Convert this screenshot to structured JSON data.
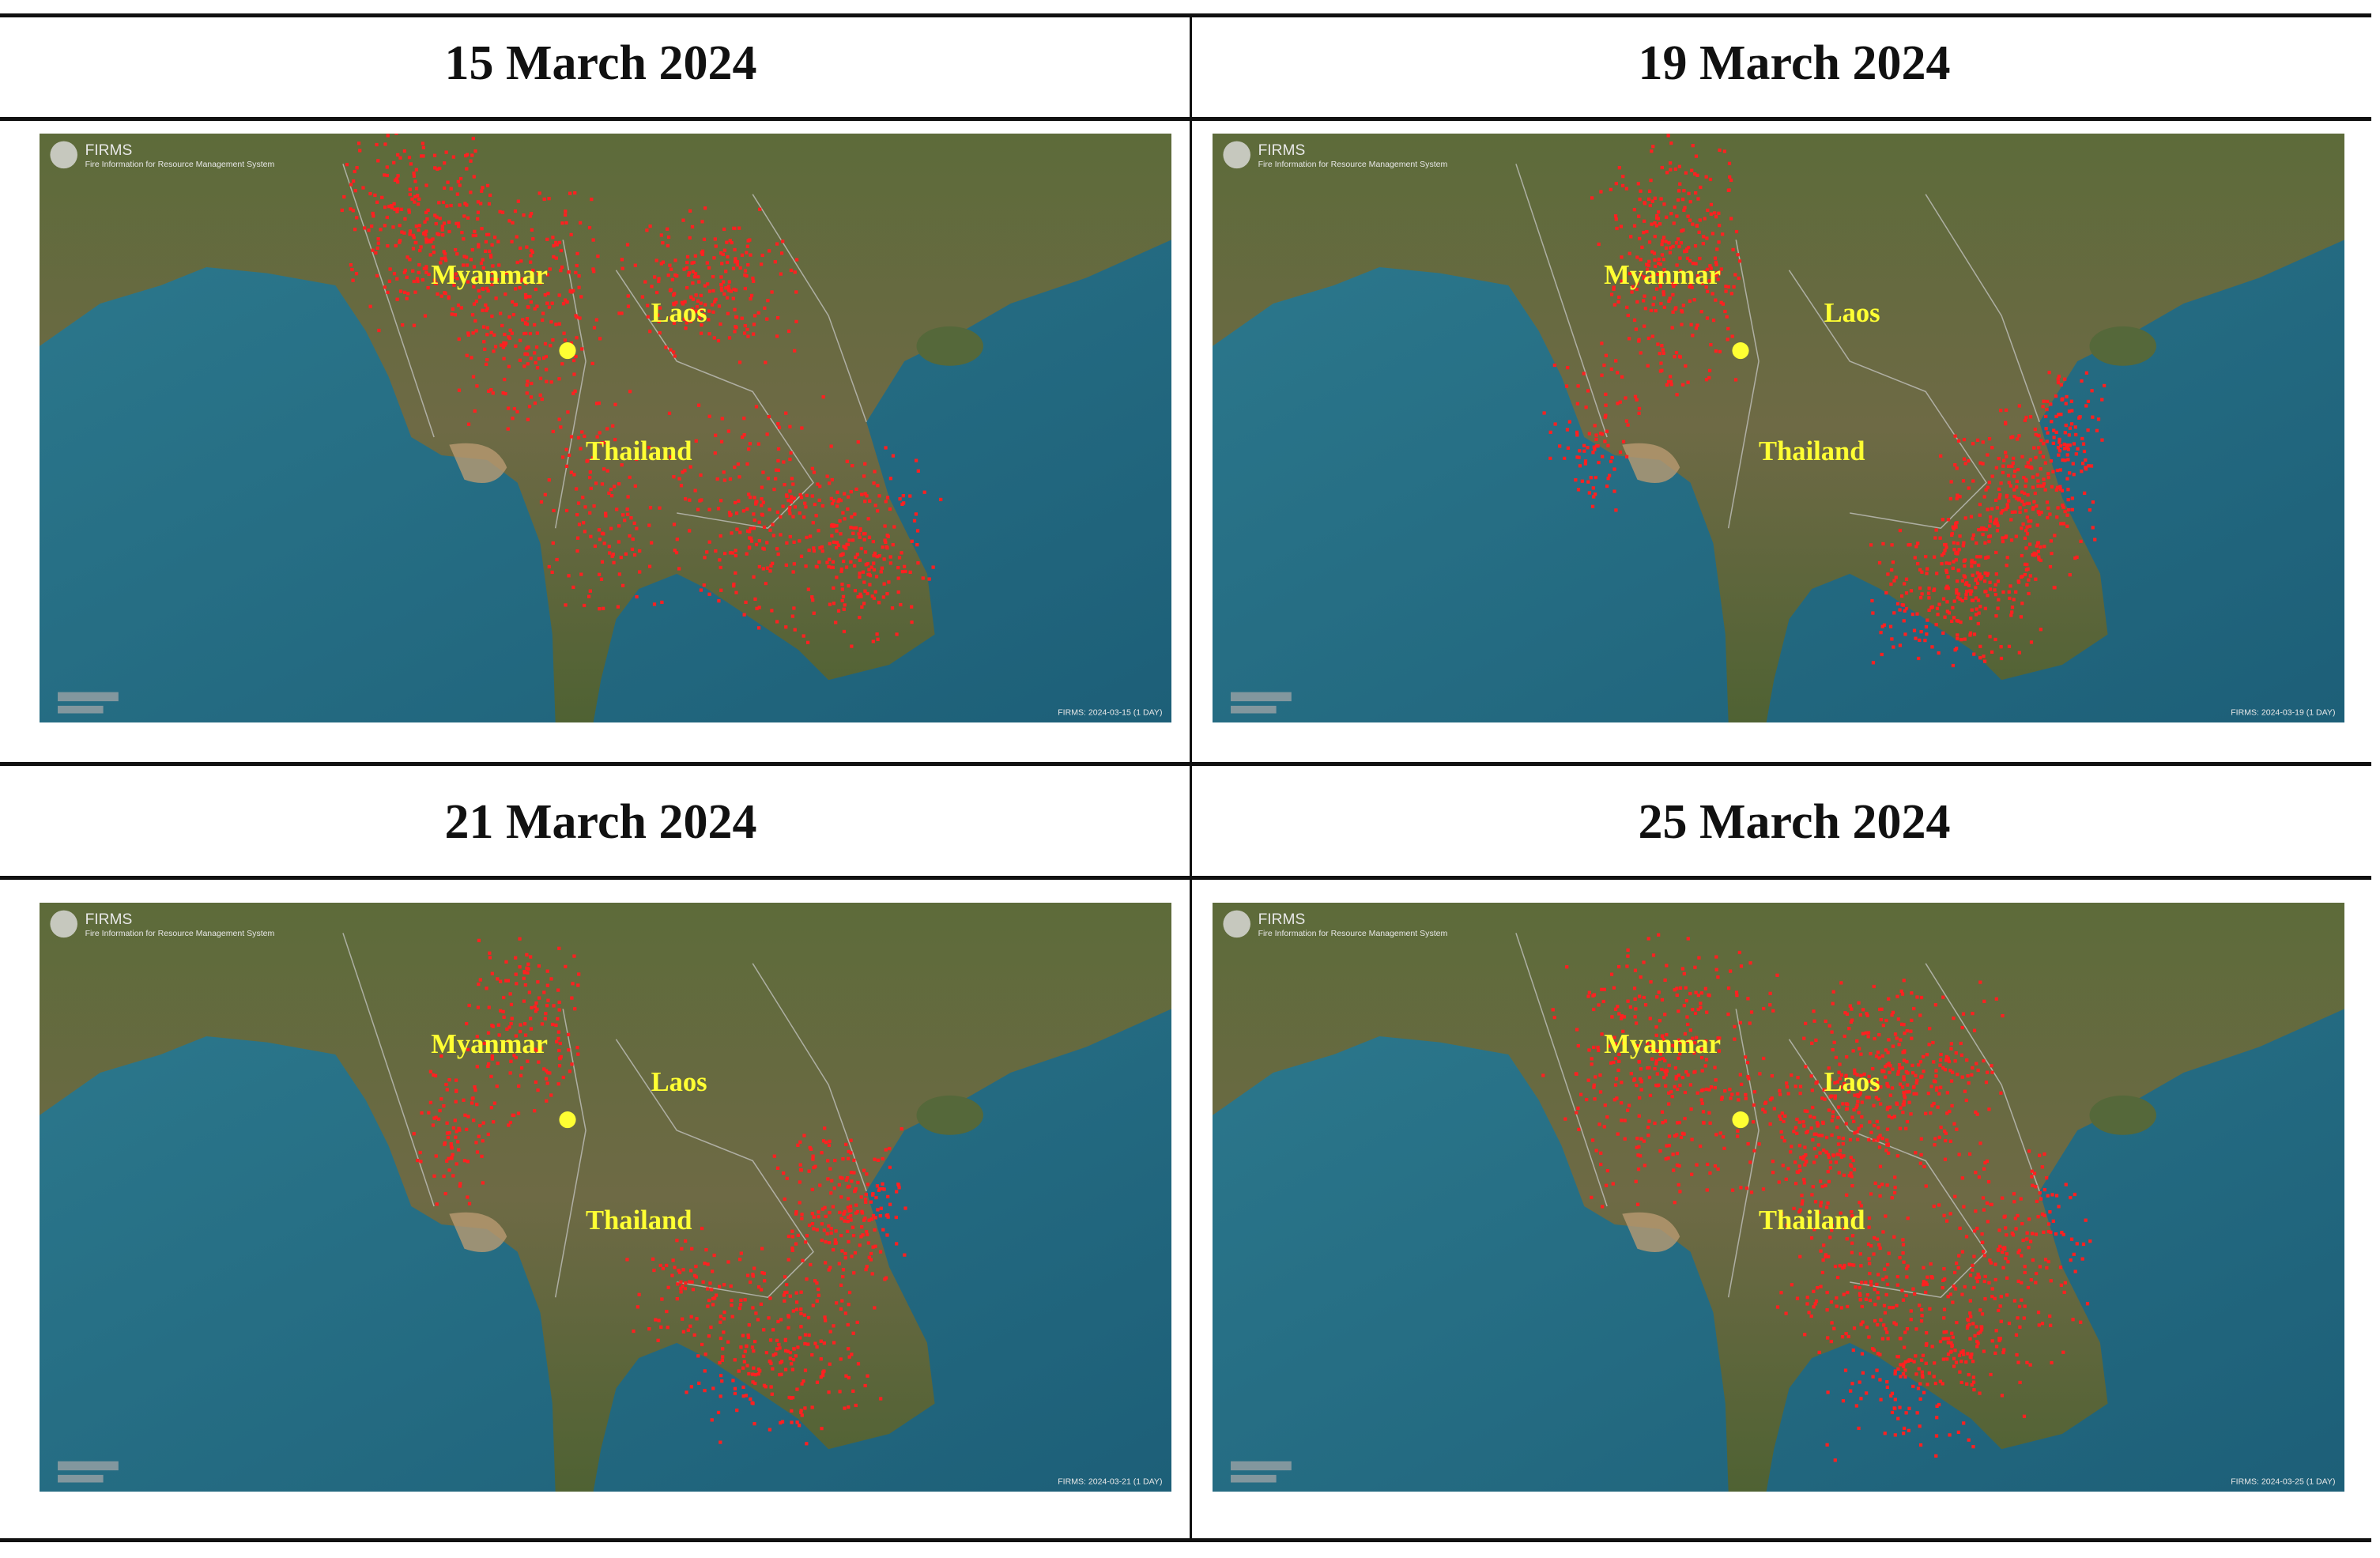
{
  "panels": [
    {
      "date": "15 March 2024",
      "map": {
        "logo_title": "FIRMS",
        "logo_subtitle": "Fire Information for Resource Management System",
        "labels": {
          "myanmar": "Myanmar",
          "laos": "Laos",
          "thailand": "Thailand"
        },
        "footer": "FIRMS: 2024-03-15 (1 DAY)"
      }
    },
    {
      "date": "19 March 2024",
      "map": {
        "logo_title": "FIRMS",
        "logo_subtitle": "Fire Information for Resource Management System",
        "labels": {
          "myanmar": "Myanmar",
          "laos": "Laos",
          "thailand": "Thailand"
        },
        "footer": "FIRMS: 2024-03-19 (1 DAY)"
      }
    },
    {
      "date": "21 March 2024",
      "map": {
        "logo_title": "FIRMS",
        "logo_subtitle": "Fire Information for Resource Management System",
        "labels": {
          "myanmar": "Myanmar",
          "laos": "Laos",
          "thailand": "Thailand"
        },
        "footer": "FIRMS: 2024-03-21 (1 DAY)"
      }
    },
    {
      "date": "25 March 2024",
      "map": {
        "logo_title": "FIRMS",
        "logo_subtitle": "Fire Information for Resource Management System",
        "labels": {
          "myanmar": "Myanmar",
          "laos": "Laos",
          "thailand": "Thailand"
        },
        "footer": "FIRMS: 2024-03-25 (1 DAY)"
      }
    }
  ]
}
